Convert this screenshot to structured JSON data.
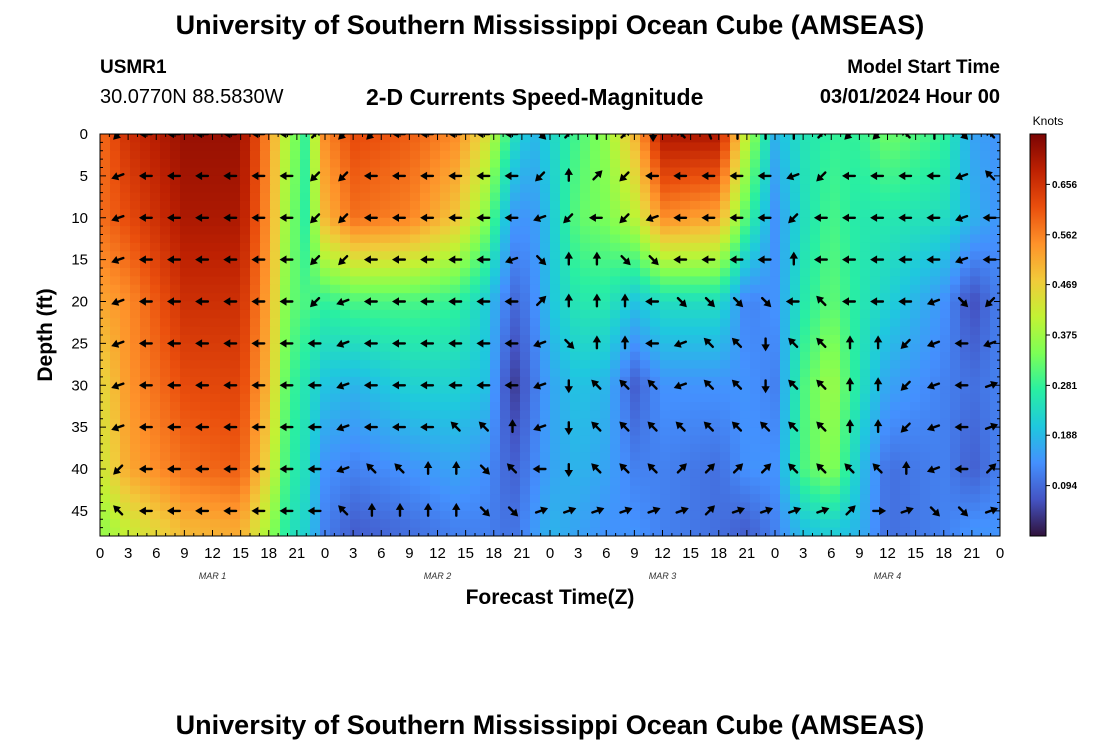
{
  "header": {
    "title": "University of Southern Mississippi Ocean Cube (AMSEAS)",
    "station": "USMR1",
    "coords": "30.0770N  88.5830W",
    "subtitle": "2-D Currents Speed-Magnitude",
    "model_start_label": "Model Start Time",
    "model_start_value": "03/01/2024 Hour 00"
  },
  "footer": {
    "title": "University of Southern Mississippi Ocean Cube (AMSEAS)"
  },
  "chart_data": {
    "type": "heatmap",
    "title": "2-D Currents Speed-Magnitude",
    "xlabel": "Forecast Time(Z)",
    "ylabel": "Depth (ft)",
    "xlim": [
      0,
      96
    ],
    "ylim": [
      0,
      48
    ],
    "x_tick_labels": [
      "0",
      "3",
      "6",
      "9",
      "12",
      "15",
      "18",
      "21",
      "0",
      "3",
      "6",
      "9",
      "12",
      "15",
      "18",
      "21",
      "0",
      "3",
      "6",
      "9",
      "12",
      "15",
      "18",
      "21",
      "0",
      "3",
      "6",
      "9",
      "12",
      "15",
      "18",
      "21",
      "0"
    ],
    "y_ticks": [
      0,
      5,
      10,
      15,
      20,
      25,
      30,
      35,
      40,
      45
    ],
    "day_labels": [
      {
        "label": "MAR 1",
        "hour": 12
      },
      {
        "label": "MAR 2",
        "hour": 36
      },
      {
        "label": "MAR 3",
        "hour": 60
      },
      {
        "label": "MAR 4",
        "hour": 84
      }
    ],
    "colorbar": {
      "label": "Knots",
      "min": 0.0,
      "max": 0.75,
      "ticks": [
        "0.656",
        "0.562",
        "0.469",
        "0.375",
        "0.281",
        "0.188",
        "0.094"
      ],
      "tick_values": [
        0.656,
        0.562,
        0.469,
        0.375,
        0.281,
        0.188,
        0.094
      ],
      "colors": [
        "#30123b",
        "#4454c4",
        "#4490fe",
        "#1fc8de",
        "#29efa2",
        "#7cff56",
        "#c2f234",
        "#f1ca3a",
        "#fe922a",
        "#ea4f0d",
        "#be2102",
        "#7a0403"
      ]
    },
    "speed_anchors": [
      {
        "hour": 0,
        "depths": [
          0,
          10,
          20,
          30,
          40,
          47
        ],
        "speeds": [
          0.58,
          0.58,
          0.52,
          0.45,
          0.42,
          0.36
        ]
      },
      {
        "hour": 3,
        "depths": [
          0,
          10,
          20,
          30,
          40,
          47
        ],
        "speeds": [
          0.66,
          0.62,
          0.55,
          0.54,
          0.52,
          0.42
        ]
      },
      {
        "hour": 9,
        "depths": [
          0,
          10,
          20,
          30,
          40,
          47
        ],
        "speeds": [
          0.72,
          0.7,
          0.66,
          0.62,
          0.58,
          0.5
        ]
      },
      {
        "hour": 15,
        "depths": [
          0,
          10,
          20,
          30,
          40,
          47
        ],
        "speeds": [
          0.72,
          0.7,
          0.66,
          0.63,
          0.6,
          0.52
        ]
      },
      {
        "hour": 18,
        "depths": [
          0,
          10,
          20,
          30,
          40,
          47
        ],
        "speeds": [
          0.55,
          0.54,
          0.52,
          0.5,
          0.45,
          0.38
        ]
      },
      {
        "hour": 20,
        "depths": [
          0,
          10,
          20,
          30,
          40,
          47
        ],
        "speeds": [
          0.38,
          0.36,
          0.33,
          0.3,
          0.28,
          0.26
        ]
      },
      {
        "hour": 22,
        "depths": [
          0,
          10,
          20,
          30,
          40,
          47
        ],
        "speeds": [
          0.28,
          0.27,
          0.3,
          0.25,
          0.24,
          0.22
        ]
      },
      {
        "hour": 24,
        "depths": [
          0,
          10,
          20,
          30,
          40,
          47
        ],
        "speeds": [
          0.55,
          0.5,
          0.28,
          0.2,
          0.14,
          0.12
        ]
      },
      {
        "hour": 27,
        "depths": [
          0,
          10,
          20,
          30,
          40,
          47
        ],
        "speeds": [
          0.62,
          0.58,
          0.3,
          0.18,
          0.12,
          0.08
        ]
      },
      {
        "hour": 33,
        "depths": [
          0,
          10,
          20,
          30,
          40,
          47
        ],
        "speeds": [
          0.6,
          0.56,
          0.3,
          0.22,
          0.14,
          0.1
        ]
      },
      {
        "hour": 38,
        "depths": [
          0,
          10,
          20,
          30,
          40,
          47
        ],
        "speeds": [
          0.55,
          0.48,
          0.28,
          0.22,
          0.16,
          0.12
        ]
      },
      {
        "hour": 41,
        "depths": [
          0,
          10,
          20,
          30,
          40,
          47
        ],
        "speeds": [
          0.45,
          0.36,
          0.22,
          0.2,
          0.14,
          0.12
        ]
      },
      {
        "hour": 44,
        "depths": [
          0,
          10,
          20,
          30,
          40,
          47
        ],
        "speeds": [
          0.25,
          0.15,
          0.09,
          0.04,
          0.08,
          0.1
        ]
      },
      {
        "hour": 46,
        "depths": [
          0,
          10,
          20,
          30,
          40,
          47
        ],
        "speeds": [
          0.18,
          0.14,
          0.12,
          0.1,
          0.12,
          0.14
        ]
      },
      {
        "hour": 48,
        "depths": [
          0,
          10,
          20,
          30,
          40,
          47
        ],
        "speeds": [
          0.22,
          0.2,
          0.2,
          0.16,
          0.16,
          0.18
        ]
      },
      {
        "hour": 51,
        "depths": [
          0,
          10,
          20,
          30,
          40,
          47
        ],
        "speeds": [
          0.3,
          0.32,
          0.26,
          0.2,
          0.18,
          0.16
        ]
      },
      {
        "hour": 54,
        "depths": [
          0,
          10,
          20,
          30,
          40,
          47
        ],
        "speeds": [
          0.36,
          0.34,
          0.26,
          0.18,
          0.16,
          0.14
        ]
      },
      {
        "hour": 57,
        "depths": [
          0,
          10,
          20,
          30,
          40,
          47
        ],
        "speeds": [
          0.5,
          0.4,
          0.2,
          0.08,
          0.12,
          0.14
        ]
      },
      {
        "hour": 60,
        "depths": [
          0,
          10,
          20,
          30,
          40,
          47
        ],
        "speeds": [
          0.7,
          0.55,
          0.24,
          0.14,
          0.12,
          0.12
        ]
      },
      {
        "hour": 66,
        "depths": [
          0,
          10,
          20,
          30,
          40,
          47
        ],
        "speeds": [
          0.7,
          0.52,
          0.24,
          0.14,
          0.1,
          0.1
        ]
      },
      {
        "hour": 69,
        "depths": [
          0,
          10,
          20,
          30,
          40,
          47
        ],
        "speeds": [
          0.4,
          0.3,
          0.12,
          0.14,
          0.14,
          0.08
        ]
      },
      {
        "hour": 72,
        "depths": [
          0,
          10,
          20,
          30,
          40,
          47
        ],
        "speeds": [
          0.18,
          0.14,
          0.14,
          0.12,
          0.14,
          0.12
        ]
      },
      {
        "hour": 75,
        "depths": [
          0,
          10,
          20,
          30,
          40,
          47
        ],
        "speeds": [
          0.25,
          0.24,
          0.26,
          0.3,
          0.3,
          0.2
        ]
      },
      {
        "hour": 78,
        "depths": [
          0,
          10,
          20,
          30,
          40,
          47
        ],
        "speeds": [
          0.28,
          0.3,
          0.32,
          0.38,
          0.36,
          0.22
        ]
      },
      {
        "hour": 81,
        "depths": [
          0,
          10,
          20,
          30,
          40,
          47
        ],
        "speeds": [
          0.28,
          0.26,
          0.26,
          0.25,
          0.2,
          0.18
        ]
      },
      {
        "hour": 84,
        "depths": [
          0,
          10,
          20,
          30,
          40,
          47
        ],
        "speeds": [
          0.33,
          0.26,
          0.22,
          0.16,
          0.1,
          0.1
        ]
      },
      {
        "hour": 90,
        "depths": [
          0,
          10,
          20,
          30,
          40,
          47
        ],
        "speeds": [
          0.28,
          0.24,
          0.14,
          0.12,
          0.12,
          0.12
        ]
      },
      {
        "hour": 93,
        "depths": [
          0,
          10,
          20,
          30,
          40,
          47
        ],
        "speeds": [
          0.16,
          0.18,
          0.06,
          0.1,
          0.08,
          0.14
        ]
      },
      {
        "hour": 96,
        "depths": [
          0,
          10,
          20,
          30,
          40,
          47
        ],
        "speeds": [
          0.14,
          0.14,
          0.12,
          0.12,
          0.12,
          0.14
        ]
      }
    ],
    "vector_depths": [
      0,
      5,
      10,
      15,
      20,
      25,
      30,
      35,
      40,
      45
    ],
    "vector_hours": [
      2,
      5,
      8,
      11,
      14,
      17,
      20,
      23,
      26,
      29,
      32,
      35,
      38,
      41,
      44,
      47,
      50,
      53,
      56,
      59,
      62,
      65,
      68,
      71,
      74,
      77,
      80,
      83,
      86,
      89,
      92,
      95
    ],
    "vector_directions": [
      [
        225,
        180,
        180,
        180,
        180,
        180,
        180,
        45,
        225,
        225,
        180,
        180,
        180,
        180,
        180,
        315,
        45,
        90,
        45,
        270,
        135,
        110,
        90,
        90,
        90,
        45,
        225,
        225,
        135,
        90,
        315,
        135
      ],
      [
        200,
        180,
        180,
        180,
        180,
        180,
        180,
        225,
        225,
        180,
        180,
        180,
        180,
        180,
        180,
        225,
        90,
        45,
        225,
        180,
        180,
        180,
        180,
        180,
        200,
        225,
        180,
        180,
        180,
        180,
        200,
        135
      ],
      [
        200,
        180,
        180,
        180,
        180,
        180,
        180,
        225,
        225,
        180,
        180,
        180,
        180,
        180,
        180,
        200,
        225,
        180,
        225,
        200,
        180,
        180,
        180,
        180,
        225,
        180,
        180,
        180,
        180,
        180,
        200,
        180
      ],
      [
        200,
        180,
        180,
        180,
        180,
        180,
        180,
        225,
        225,
        180,
        180,
        180,
        180,
        180,
        200,
        315,
        90,
        90,
        315,
        315,
        180,
        180,
        180,
        180,
        90,
        180,
        180,
        180,
        180,
        180,
        200,
        180
      ],
      [
        200,
        180,
        180,
        180,
        180,
        180,
        180,
        225,
        200,
        180,
        180,
        180,
        180,
        180,
        180,
        45,
        90,
        90,
        90,
        180,
        315,
        315,
        315,
        315,
        180,
        135,
        180,
        180,
        180,
        200,
        315,
        225
      ],
      [
        200,
        180,
        180,
        180,
        180,
        180,
        180,
        180,
        200,
        180,
        180,
        180,
        180,
        180,
        180,
        200,
        315,
        90,
        90,
        180,
        200,
        135,
        135,
        270,
        135,
        135,
        90,
        90,
        225,
        200,
        180,
        200
      ],
      [
        200,
        180,
        180,
        180,
        180,
        180,
        180,
        180,
        200,
        180,
        180,
        180,
        180,
        180,
        180,
        200,
        270,
        135,
        135,
        135,
        200,
        135,
        135,
        270,
        135,
        135,
        90,
        90,
        225,
        200,
        180,
        20
      ],
      [
        200,
        180,
        180,
        180,
        180,
        180,
        180,
        180,
        200,
        180,
        180,
        180,
        135,
        135,
        90,
        200,
        270,
        135,
        135,
        135,
        135,
        135,
        135,
        135,
        135,
        135,
        90,
        90,
        225,
        200,
        180,
        20
      ],
      [
        225,
        180,
        180,
        180,
        180,
        180,
        180,
        180,
        200,
        135,
        135,
        90,
        90,
        315,
        135,
        180,
        270,
        135,
        135,
        135,
        45,
        45,
        45,
        45,
        135,
        135,
        135,
        135,
        90,
        200,
        180,
        45
      ],
      [
        135,
        180,
        180,
        180,
        180,
        180,
        180,
        180,
        135,
        90,
        90,
        90,
        90,
        315,
        315,
        20,
        20,
        20,
        20,
        20,
        20,
        45,
        20,
        20,
        20,
        20,
        45,
        0,
        20,
        315,
        315,
        20
      ]
    ]
  }
}
